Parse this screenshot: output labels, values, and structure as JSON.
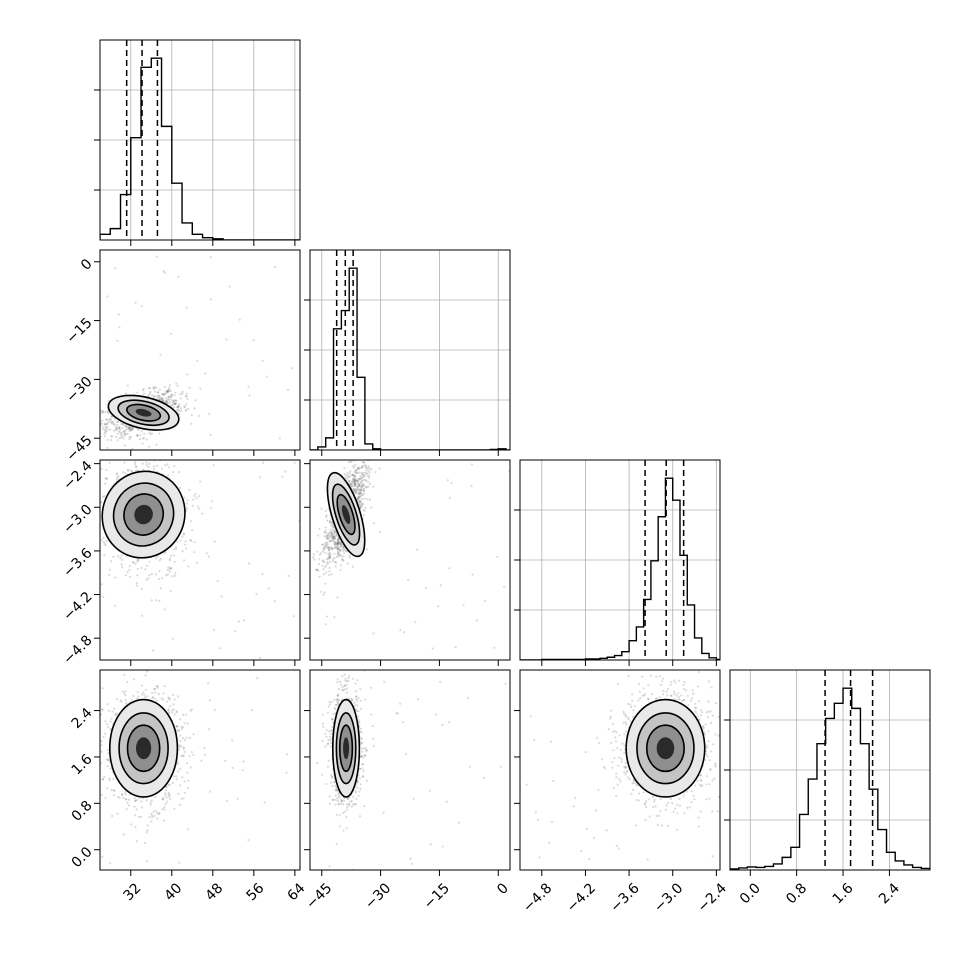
{
  "chart_data": {
    "type": "corner",
    "grid": true,
    "colors": {
      "line": "#000000",
      "grid": "#b0b0b0",
      "points": "#555555"
    },
    "parameters": [
      {
        "range": [
          26,
          65
        ],
        "ticks": [
          32,
          40,
          48,
          56,
          64
        ],
        "tick_labels": [
          "32",
          "40",
          "48",
          "56",
          "64"
        ],
        "quantiles": [
          31.2,
          34.2,
          37.2
        ],
        "hist": {
          "edges": [
            26,
            28,
            30,
            32,
            34,
            36,
            38,
            40,
            42,
            44,
            46,
            48,
            50,
            52,
            54,
            56,
            58,
            60,
            62,
            64,
            65
          ],
          "counts": [
            5,
            10,
            40,
            90,
            152,
            160,
            100,
            50,
            15,
            5,
            2,
            1,
            0,
            0,
            0,
            0,
            0,
            0,
            0,
            0
          ]
        }
      },
      {
        "range": [
          -48,
          3
        ],
        "ticks": [
          -45,
          -30,
          -15,
          0
        ],
        "tick_labels": [
          "−45",
          "−30",
          "−15",
          "0"
        ],
        "quantiles": [
          -41.2,
          -39.0,
          -37.0
        ],
        "hist": {
          "edges": [
            -48,
            -46,
            -44,
            -42,
            -40,
            -38,
            -36,
            -34,
            -32,
            -30,
            -28,
            -26,
            -24,
            -22,
            -20,
            -18,
            -16,
            -14,
            -12,
            -10,
            -8,
            -6,
            -4,
            -2,
            0,
            2,
            3
          ],
          "counts": [
            0,
            5,
            20,
            200,
            230,
            300,
            120,
            10,
            2,
            0,
            0,
            0,
            0,
            0,
            0,
            0,
            0,
            0,
            0,
            0,
            0,
            0,
            0,
            1,
            2,
            0
          ]
        }
      },
      {
        "range": [
          -5.1,
          -2.35
        ],
        "ticks": [
          -4.8,
          -4.2,
          -3.6,
          -3.0,
          -2.4
        ],
        "tick_labels": [
          "−4.8",
          "−4.2",
          "−3.6",
          "−3.0",
          "−2.4"
        ],
        "quantiles": [
          -3.38,
          -3.09,
          -2.85
        ],
        "hist": {
          "edges": [
            -5.1,
            -5.0,
            -4.9,
            -4.8,
            -4.7,
            -4.6,
            -4.5,
            -4.4,
            -4.3,
            -4.2,
            -4.1,
            -4.0,
            -3.9,
            -3.8,
            -3.7,
            -3.6,
            -3.5,
            -3.4,
            -3.3,
            -3.2,
            -3.1,
            -3.0,
            -2.9,
            -2.8,
            -2.7,
            -2.6,
            -2.5,
            -2.4,
            -2.35
          ],
          "counts": [
            0,
            0,
            0,
            1,
            1,
            1,
            1,
            1,
            1,
            2,
            2,
            3,
            5,
            8,
            15,
            35,
            60,
            110,
            180,
            260,
            330,
            290,
            190,
            100,
            40,
            12,
            4,
            1
          ]
        }
      },
      {
        "range": [
          -0.35,
          3.1
        ],
        "ticks": [
          0.0,
          0.8,
          1.6,
          2.4
        ],
        "tick_labels": [
          "0.0",
          "0.8",
          "1.6",
          "2.4"
        ],
        "quantiles": [
          1.29,
          1.73,
          2.11
        ],
        "hist": {
          "edges": [
            -0.35,
            -0.2,
            -0.05,
            0.1,
            0.25,
            0.4,
            0.55,
            0.7,
            0.85,
            1.0,
            1.15,
            1.3,
            1.45,
            1.6,
            1.75,
            1.9,
            2.05,
            2.2,
            2.35,
            2.5,
            2.65,
            2.8,
            2.95,
            3.1
          ],
          "counts": [
            2,
            4,
            6,
            5,
            7,
            12,
            25,
            45,
            110,
            180,
            250,
            300,
            330,
            360,
            320,
            250,
            160,
            80,
            35,
            18,
            10,
            5,
            3
          ]
        }
      }
    ],
    "pairs": [
      {
        "x": 0,
        "y": 1,
        "center": [
          34.5,
          -38.5
        ],
        "spread": [
          3.5,
          2.0
        ],
        "angle": -0.45
      },
      {
        "x": 0,
        "y": 2,
        "center": [
          34.5,
          -3.1
        ],
        "spread": [
          4.0,
          0.3
        ],
        "angle": -0.75
      },
      {
        "x": 1,
        "y": 2,
        "center": [
          -38.8,
          -3.1
        ],
        "spread": [
          1.8,
          0.3
        ],
        "angle": 0.6
      },
      {
        "x": 0,
        "y": 3,
        "center": [
          34.5,
          1.75
        ],
        "spread": [
          3.3,
          0.42
        ],
        "angle": 0.0
      },
      {
        "x": 1,
        "y": 3,
        "center": [
          -38.8,
          1.75
        ],
        "spread": [
          1.7,
          0.42
        ],
        "angle": 0.0
      },
      {
        "x": 2,
        "y": 3,
        "center": [
          -3.1,
          1.75
        ],
        "spread": [
          0.27,
          0.42
        ],
        "angle": 0.0
      }
    ]
  }
}
